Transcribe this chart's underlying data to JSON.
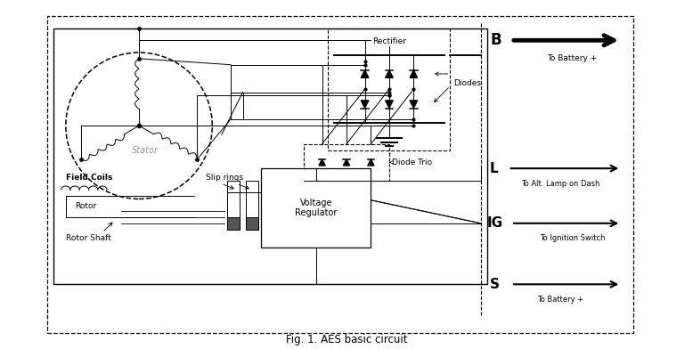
{
  "title": "Fig. 1. AES basic circuit",
  "fig_width": 7.78,
  "fig_height": 3.92,
  "labels": {
    "stator": "Stator",
    "field_coils": "Field Coils",
    "slip_rings": "Slip rings",
    "rotor": "Rotor",
    "rotor_shaft": "Rotor Shaft",
    "rectifier": "Rectifier",
    "diodes": "Diodes",
    "diode_trio": "Diode Trio",
    "voltage_regulator": "Voltage\nRegulator",
    "B": "B",
    "B_sub": "To Battery +",
    "L": "L",
    "L_sub": "To Alt. Lamp on Dash",
    "IG": "IG",
    "IG_sub": "To Ignition Switch",
    "S": "S",
    "S_sub": "To Battery +"
  }
}
